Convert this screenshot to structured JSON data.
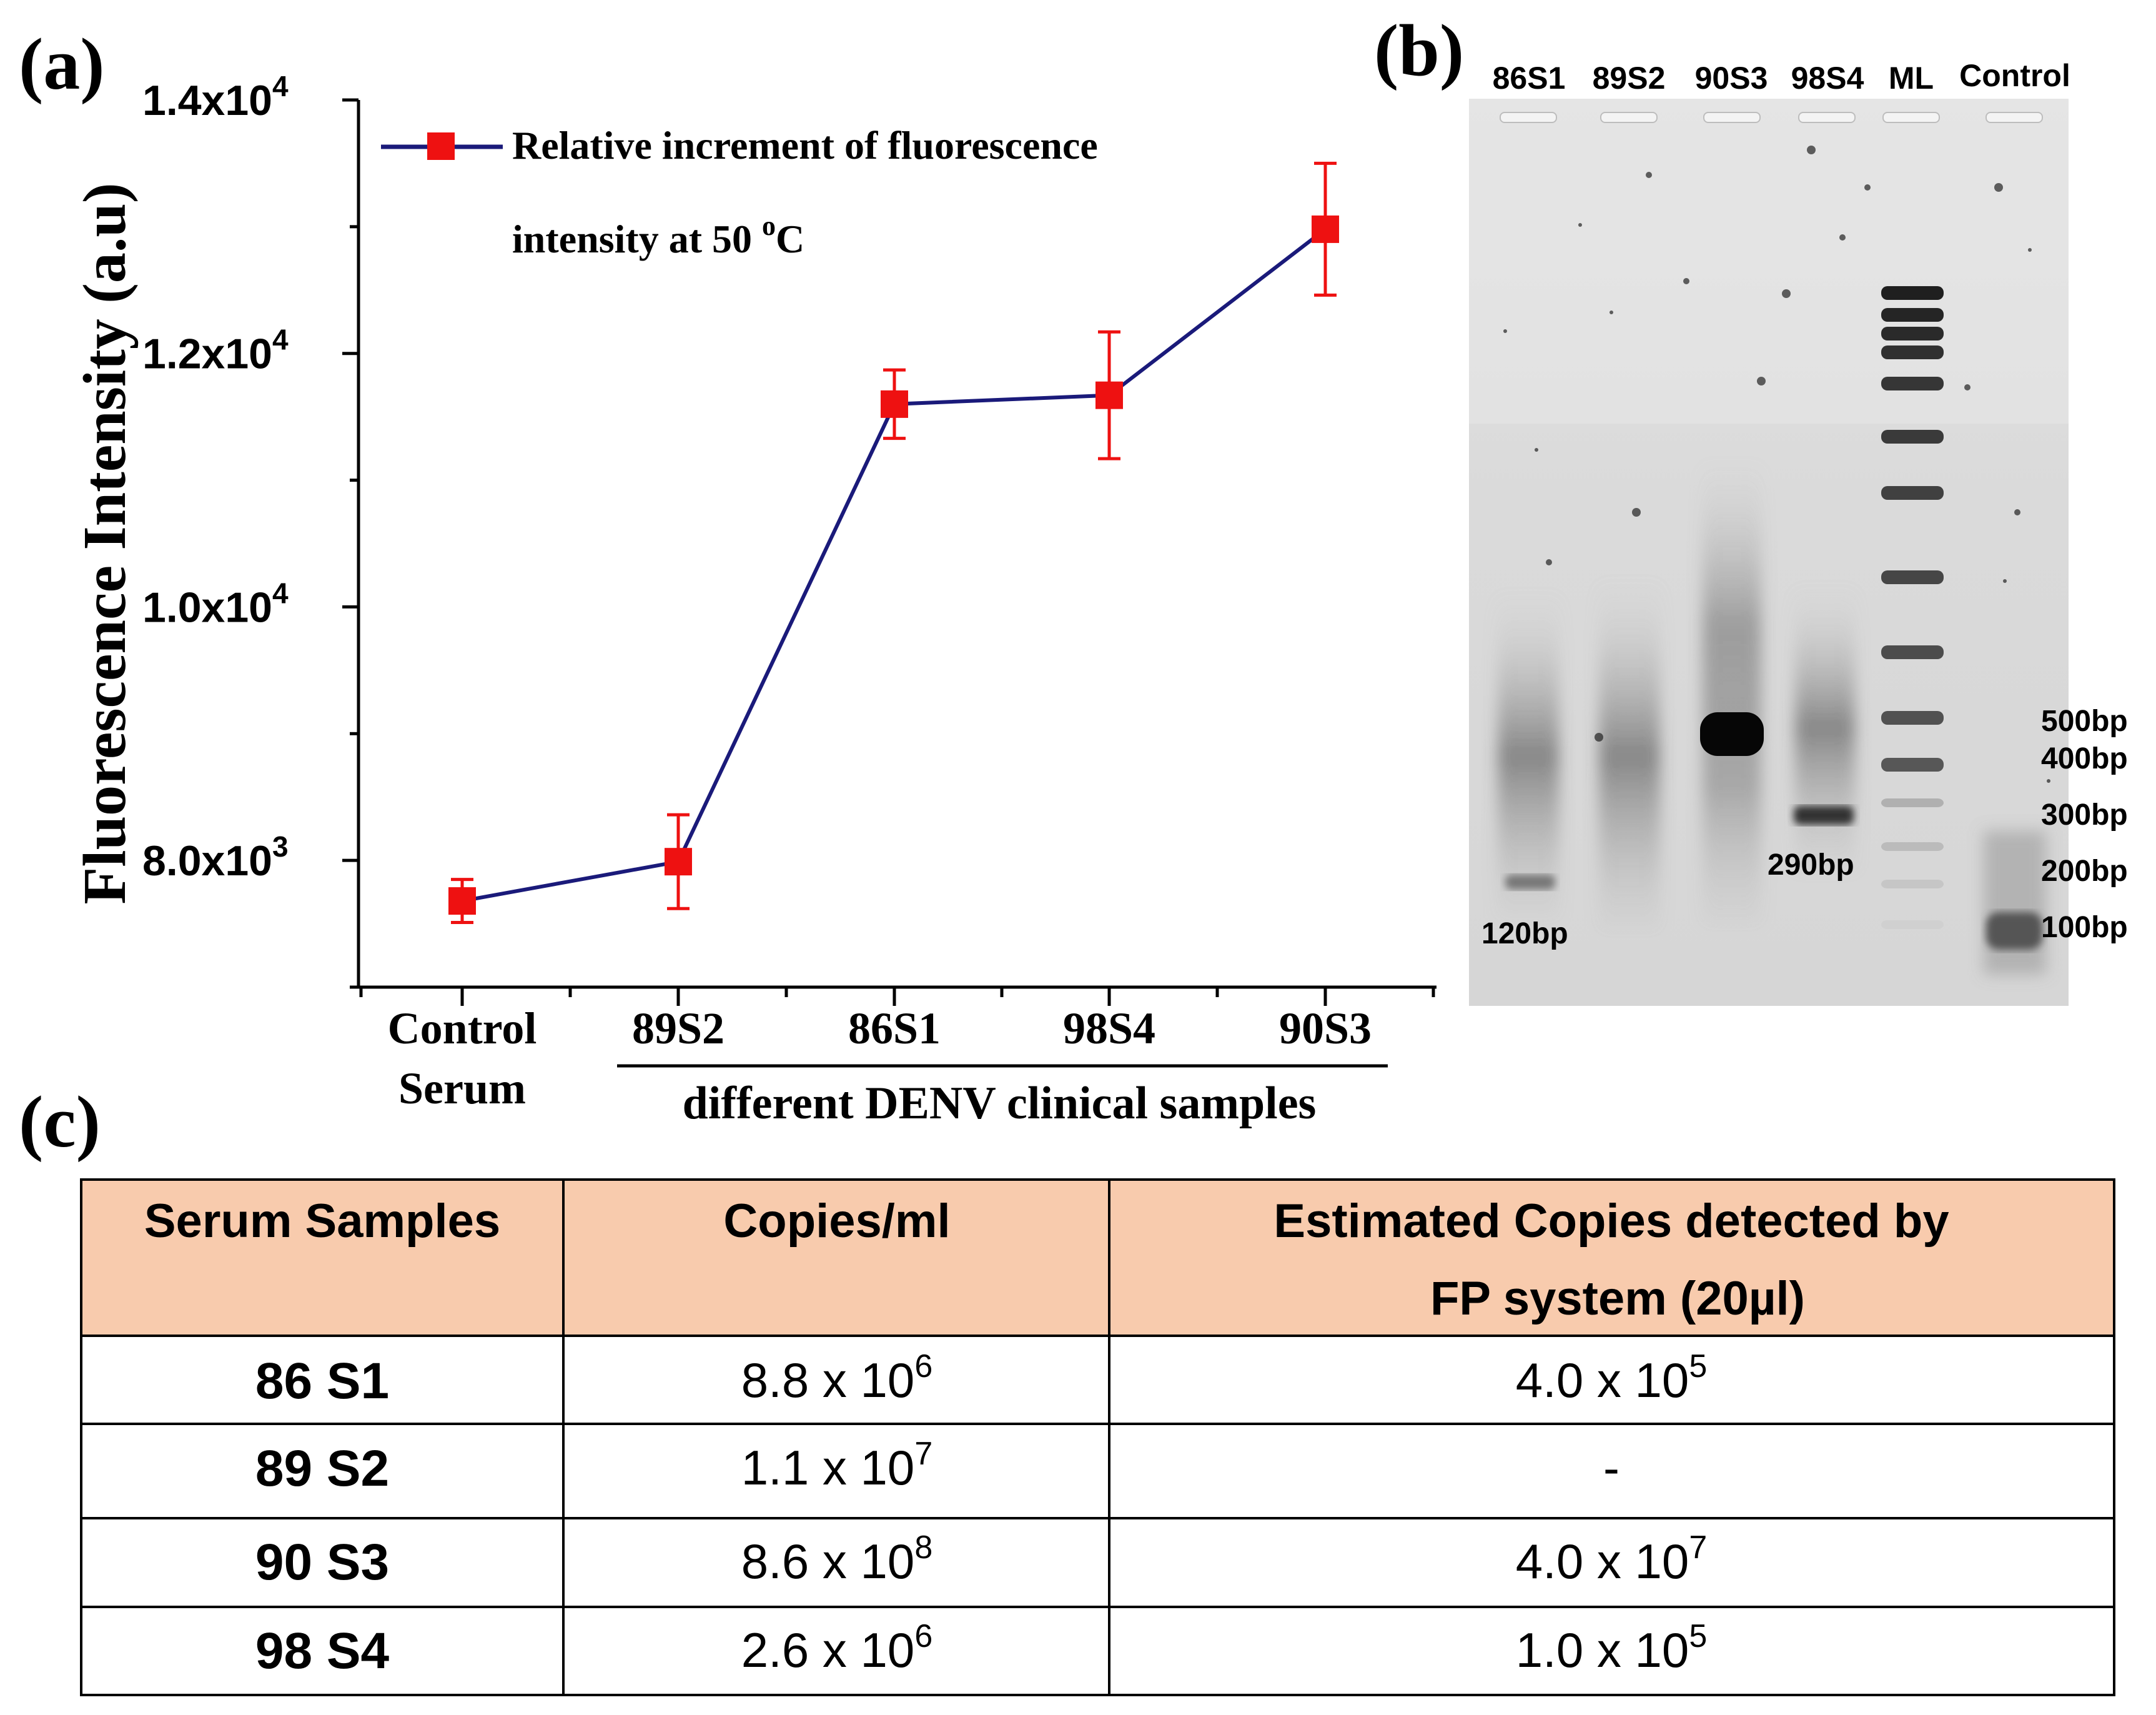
{
  "panel_labels": {
    "a": "(a)",
    "b": "(b)",
    "c": "(c)"
  },
  "chart_data": {
    "type": "line",
    "title": "",
    "ylabel": "Fluorescence Intensity (a.u)",
    "xlabel": "different DENV clinical samples",
    "categories": [
      "Control Serum",
      "89S2",
      "86S1",
      "98S4",
      "90S3"
    ],
    "category_lines": [
      [
        "Control",
        "Serum"
      ],
      [
        "89S2"
      ],
      [
        "86S1"
      ],
      [
        "98S4"
      ],
      [
        "90S3"
      ]
    ],
    "ylim": [
      7000,
      14000
    ],
    "yticks": [
      {
        "value": 8000,
        "mantissa": "8.0x10",
        "exp": "3"
      },
      {
        "value": 10000,
        "mantissa": "1.0x10",
        "exp": "4"
      },
      {
        "value": 12000,
        "mantissa": "1.2x10",
        "exp": "4"
      },
      {
        "value": 14000,
        "mantissa": "1.4x10",
        "exp": "4"
      }
    ],
    "series": [
      {
        "name": "Relative increment of fluorescence intensity at 50 oC",
        "legend_line1": "Relative increment of fluorescence",
        "legend_line2": "intensity at 50 ",
        "legend_sup": "o",
        "legend_unit": "C",
        "values": [
          7680,
          7990,
          11600,
          11670,
          12980
        ],
        "errors": [
          170,
          370,
          270,
          500,
          520
        ],
        "line_color": "#1a1a7a",
        "marker_color": "#ee1111"
      }
    ]
  },
  "gel": {
    "lanes": [
      "86S1",
      "89S2",
      "90S3",
      "98S4",
      "ML",
      "Control"
    ],
    "band_labels": [
      "120bp",
      "290bp"
    ],
    "ladder_labels": [
      "500bp",
      "400bp",
      "300bp",
      "200bp",
      "100bp"
    ]
  },
  "table": {
    "header": {
      "col1": "Serum Samples",
      "col2": "Copies/ml",
      "col3_line1": "Estimated Copies detected by",
      "col3_line2": "FP system (20µl)"
    },
    "header_color": "#f8cbad",
    "rows": [
      {
        "sample": "86 S1",
        "copies_base": "8.8 x 10",
        "copies_exp": "6",
        "est_base": "4.0 x 10",
        "est_exp": "5"
      },
      {
        "sample": "89 S2",
        "copies_base": "1.1 x 10",
        "copies_exp": "7",
        "est_base": "-",
        "est_exp": ""
      },
      {
        "sample": "90 S3",
        "copies_base": "8.6 x 10",
        "copies_exp": "8",
        "est_base": "4.0 x 10",
        "est_exp": "7"
      },
      {
        "sample": "98 S4",
        "copies_base": "2.6 x 10",
        "copies_exp": "6",
        "est_base": "1.0  x 10",
        "est_exp": "5"
      }
    ]
  }
}
